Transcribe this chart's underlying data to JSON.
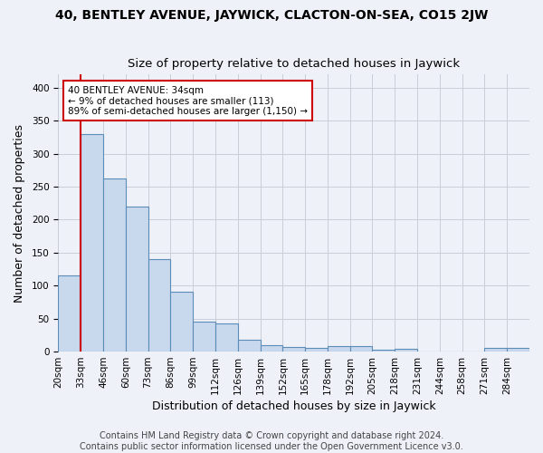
{
  "title": "40, BENTLEY AVENUE, JAYWICK, CLACTON-ON-SEA, CO15 2JW",
  "subtitle": "Size of property relative to detached houses in Jaywick",
  "xlabel": "Distribution of detached houses by size in Jaywick",
  "ylabel": "Number of detached properties",
  "bin_labels": [
    "20sqm",
    "33sqm",
    "46sqm",
    "60sqm",
    "73sqm",
    "86sqm",
    "99sqm",
    "112sqm",
    "126sqm",
    "139sqm",
    "152sqm",
    "165sqm",
    "178sqm",
    "192sqm",
    "205sqm",
    "218sqm",
    "231sqm",
    "244sqm",
    "258sqm",
    "271sqm",
    "284sqm"
  ],
  "values": [
    115,
    330,
    263,
    220,
    140,
    91,
    45,
    43,
    18,
    10,
    7,
    5,
    8,
    9,
    3,
    4,
    0,
    0,
    0,
    5,
    5
  ],
  "bar_color": "#c8d8ed",
  "bar_edge_color": "#5b8db8",
  "property_line_index": 1,
  "property_line_color": "#cc0000",
  "annotation_line1": "40 BENTLEY AVENUE: 34sqm",
  "annotation_line2": "← 9% of detached houses are smaller (113)",
  "annotation_line3": "89% of semi-detached houses are larger (1,150) →",
  "annotation_box_color": "#cc0000",
  "annotation_bg": "#ffffff",
  "ylim": [
    0,
    420
  ],
  "yticks": [
    0,
    50,
    100,
    150,
    200,
    250,
    300,
    350,
    400
  ],
  "grid_color": "#c8cdd8",
  "background_color": "#eef1f8",
  "footer_line1": "Contains HM Land Registry data © Crown copyright and database right 2024.",
  "footer_line2": "Contains public sector information licensed under the Open Government Licence v3.0.",
  "title_fontsize": 10,
  "subtitle_fontsize": 9.5,
  "axis_label_fontsize": 9,
  "tick_fontsize": 7.5,
  "annotation_fontsize": 7.5,
  "footer_fontsize": 7
}
